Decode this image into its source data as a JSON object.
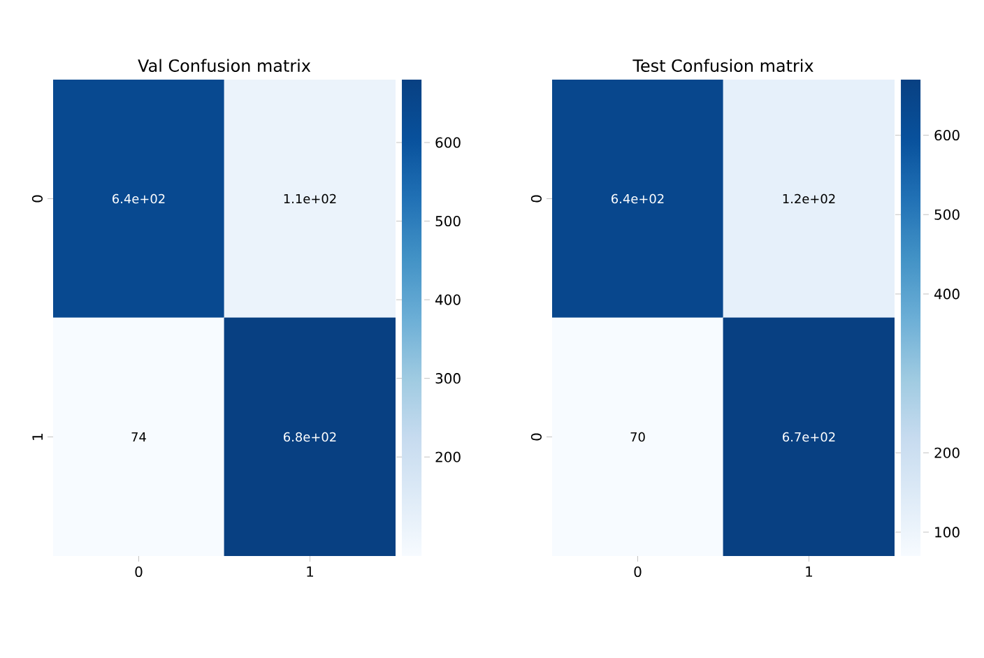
{
  "chart_data": [
    {
      "type": "heatmap",
      "title": "Val Confusion matrix",
      "categories": [
        "0",
        "1"
      ],
      "y_categories": [
        "0",
        "1"
      ],
      "cells": [
        [
          640,
          110
        ],
        [
          74,
          680
        ]
      ],
      "cell_labels": [
        [
          "6.4e+02",
          "1.1e+02"
        ],
        [
          "74",
          "6.8e+02"
        ]
      ],
      "clim": [
        74,
        680
      ],
      "cticks": [
        200,
        300,
        400,
        500,
        600
      ]
    },
    {
      "type": "heatmap",
      "title": "Test Confusion matrix",
      "categories": [
        "0",
        "1"
      ],
      "y_categories": [
        "0",
        "0"
      ],
      "cells": [
        [
          640,
          120
        ],
        [
          70,
          670
        ]
      ],
      "cell_labels": [
        [
          "6.4e+02",
          "1.2e+02"
        ],
        [
          "70",
          "6.7e+02"
        ]
      ],
      "clim": [
        70,
        670
      ],
      "cticks": [
        100,
        200,
        400,
        500,
        600
      ]
    }
  ]
}
